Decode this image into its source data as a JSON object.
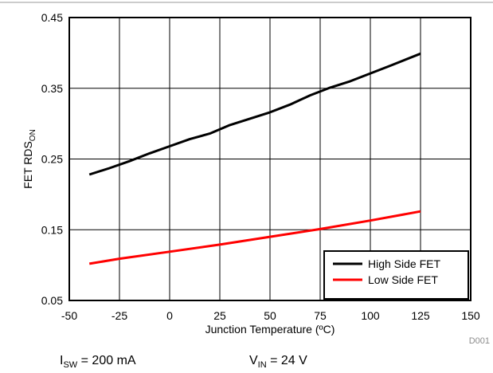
{
  "chart_data": {
    "type": "line",
    "xlabel": "Junction Temperature (ºC)",
    "ylabel": "FET RDS",
    "ylabel_sub": "ON",
    "xlim": [
      -50,
      150
    ],
    "ylim": [
      0.05,
      0.45
    ],
    "xticks": [
      "-50",
      "-25",
      "0",
      "25",
      "50",
      "75",
      "100",
      "125",
      "150"
    ],
    "yticks": [
      "0.05",
      "0.15",
      "0.25",
      "0.35",
      "0.45"
    ],
    "grid": true,
    "legend_position": "bottom-right",
    "series": [
      {
        "name": "High Side FET",
        "color": "#000000",
        "x": [
          -40,
          -30,
          -20,
          -10,
          0,
          10,
          20,
          30,
          40,
          50,
          60,
          70,
          80,
          90,
          100,
          110,
          125
        ],
        "y": [
          0.228,
          0.237,
          0.247,
          0.258,
          0.268,
          0.278,
          0.286,
          0.298,
          0.307,
          0.316,
          0.327,
          0.34,
          0.351,
          0.36,
          0.371,
          0.382,
          0.399
        ]
      },
      {
        "name": "Low Side FET",
        "color": "#ff0000",
        "x": [
          -40,
          -25,
          0,
          25,
          50,
          75,
          100,
          125
        ],
        "y": [
          0.102,
          0.109,
          0.119,
          0.129,
          0.14,
          0.151,
          0.163,
          0.176
        ]
      }
    ],
    "code": "D001",
    "conditions": [
      {
        "base": "I",
        "sub": "SW",
        "rest": " = 200 mA"
      },
      {
        "base": "V",
        "sub": "IN",
        "rest": " = 24 V"
      }
    ]
  }
}
